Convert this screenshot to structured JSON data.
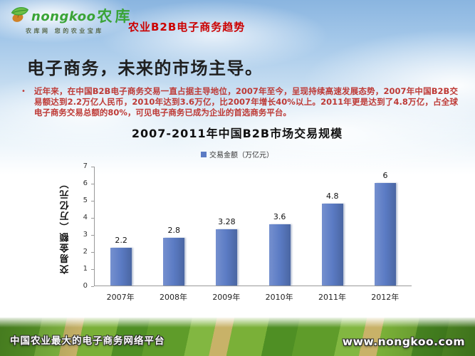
{
  "header": {
    "brand": "nongkoo",
    "brand_cn": "农库",
    "tagline": "农库网 您的农业宝库",
    "topic": "农业B2B电子商务趋势"
  },
  "title": "电子商务，未来的市场主导。",
  "bullet": {
    "marker": "•",
    "text": "近年来，在中国B2B电子商务交易一直占据主导地位，2007年至今，呈现持续高速发展态势，2007年中国B2B交易额达到2.2万亿人民币，2010年达到3.6万亿，比2007年增长40%以上。2011年更是达到了4.8万亿，占全球电子商务交易总额的80%，可见电子商务已成为企业的首选商务平台。"
  },
  "chart_data": {
    "type": "bar",
    "title": "2007-2011年中国B2B市场交易规模",
    "legend": "交易金额（万亿元）",
    "legend_position": "top",
    "categories": [
      "2007年",
      "2008年",
      "2009年",
      "2010年",
      "2011年",
      "2012年"
    ],
    "values": [
      2.2,
      2.8,
      3.28,
      3.6,
      4.8,
      6
    ],
    "value_labels": [
      "2.2",
      "2.8",
      "3.28",
      "3.6",
      "4.8",
      "6"
    ],
    "xlabel": "",
    "ylabel": "交易金额（万亿元）",
    "ylim": [
      0,
      7
    ],
    "yticks": [
      0,
      1,
      2,
      3,
      4,
      5,
      6,
      7
    ],
    "grid": false,
    "bar_color": "#5B7BC4"
  },
  "footer": {
    "left": "中国农业最大的电子商务网络平台",
    "right": "www.nongkoo.com"
  },
  "colors": {
    "accent_red": "#CC0000",
    "paragraph_red": "#BE3A36",
    "brand_green": "#3AA437",
    "bar_blue": "#5B7BC4",
    "field_green": "#5F9C2A",
    "sky_blue": "#8AB5E0"
  }
}
